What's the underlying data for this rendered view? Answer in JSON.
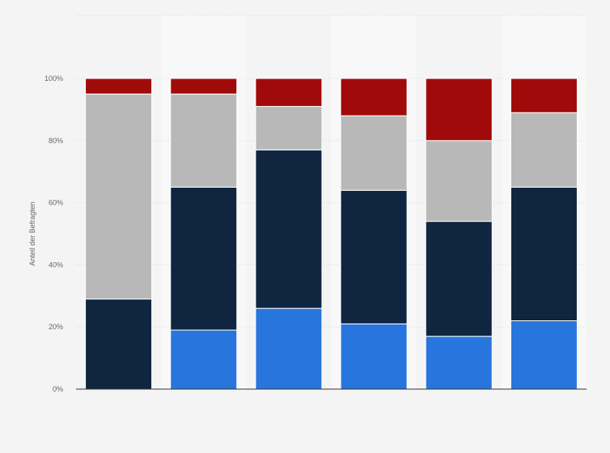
{
  "chart_data": {
    "type": "bar",
    "stacked": true,
    "orientation": "vertical",
    "ylabel": "Anteil der Befragten",
    "ylim": [
      0,
      100
    ],
    "y_ticks": [
      0,
      20,
      40,
      60,
      80,
      100
    ],
    "y_tick_labels": [
      "0%",
      "20%",
      "40%",
      "60%",
      "80%",
      "100%"
    ],
    "categories": [
      "",
      "",
      "",
      "",
      "",
      ""
    ],
    "series": [
      {
        "color": "#2876dd",
        "values": [
          0,
          19,
          26,
          21,
          17,
          22
        ]
      },
      {
        "color": "#10253f",
        "values": [
          29,
          46,
          51,
          43,
          37,
          43
        ]
      },
      {
        "color": "#b8b8b8",
        "values": [
          66,
          30,
          14,
          24,
          26,
          24
        ]
      },
      {
        "color": "#a10a0a",
        "values": [
          5,
          5,
          9,
          12,
          20,
          11
        ]
      }
    ],
    "legend": "none",
    "grid": true,
    "colors": {
      "background": "#f4f4f4",
      "column_band": "#f8f8f8",
      "grid": "#d8d8d8",
      "axis": "#333333",
      "tick_text": "#666666"
    }
  }
}
